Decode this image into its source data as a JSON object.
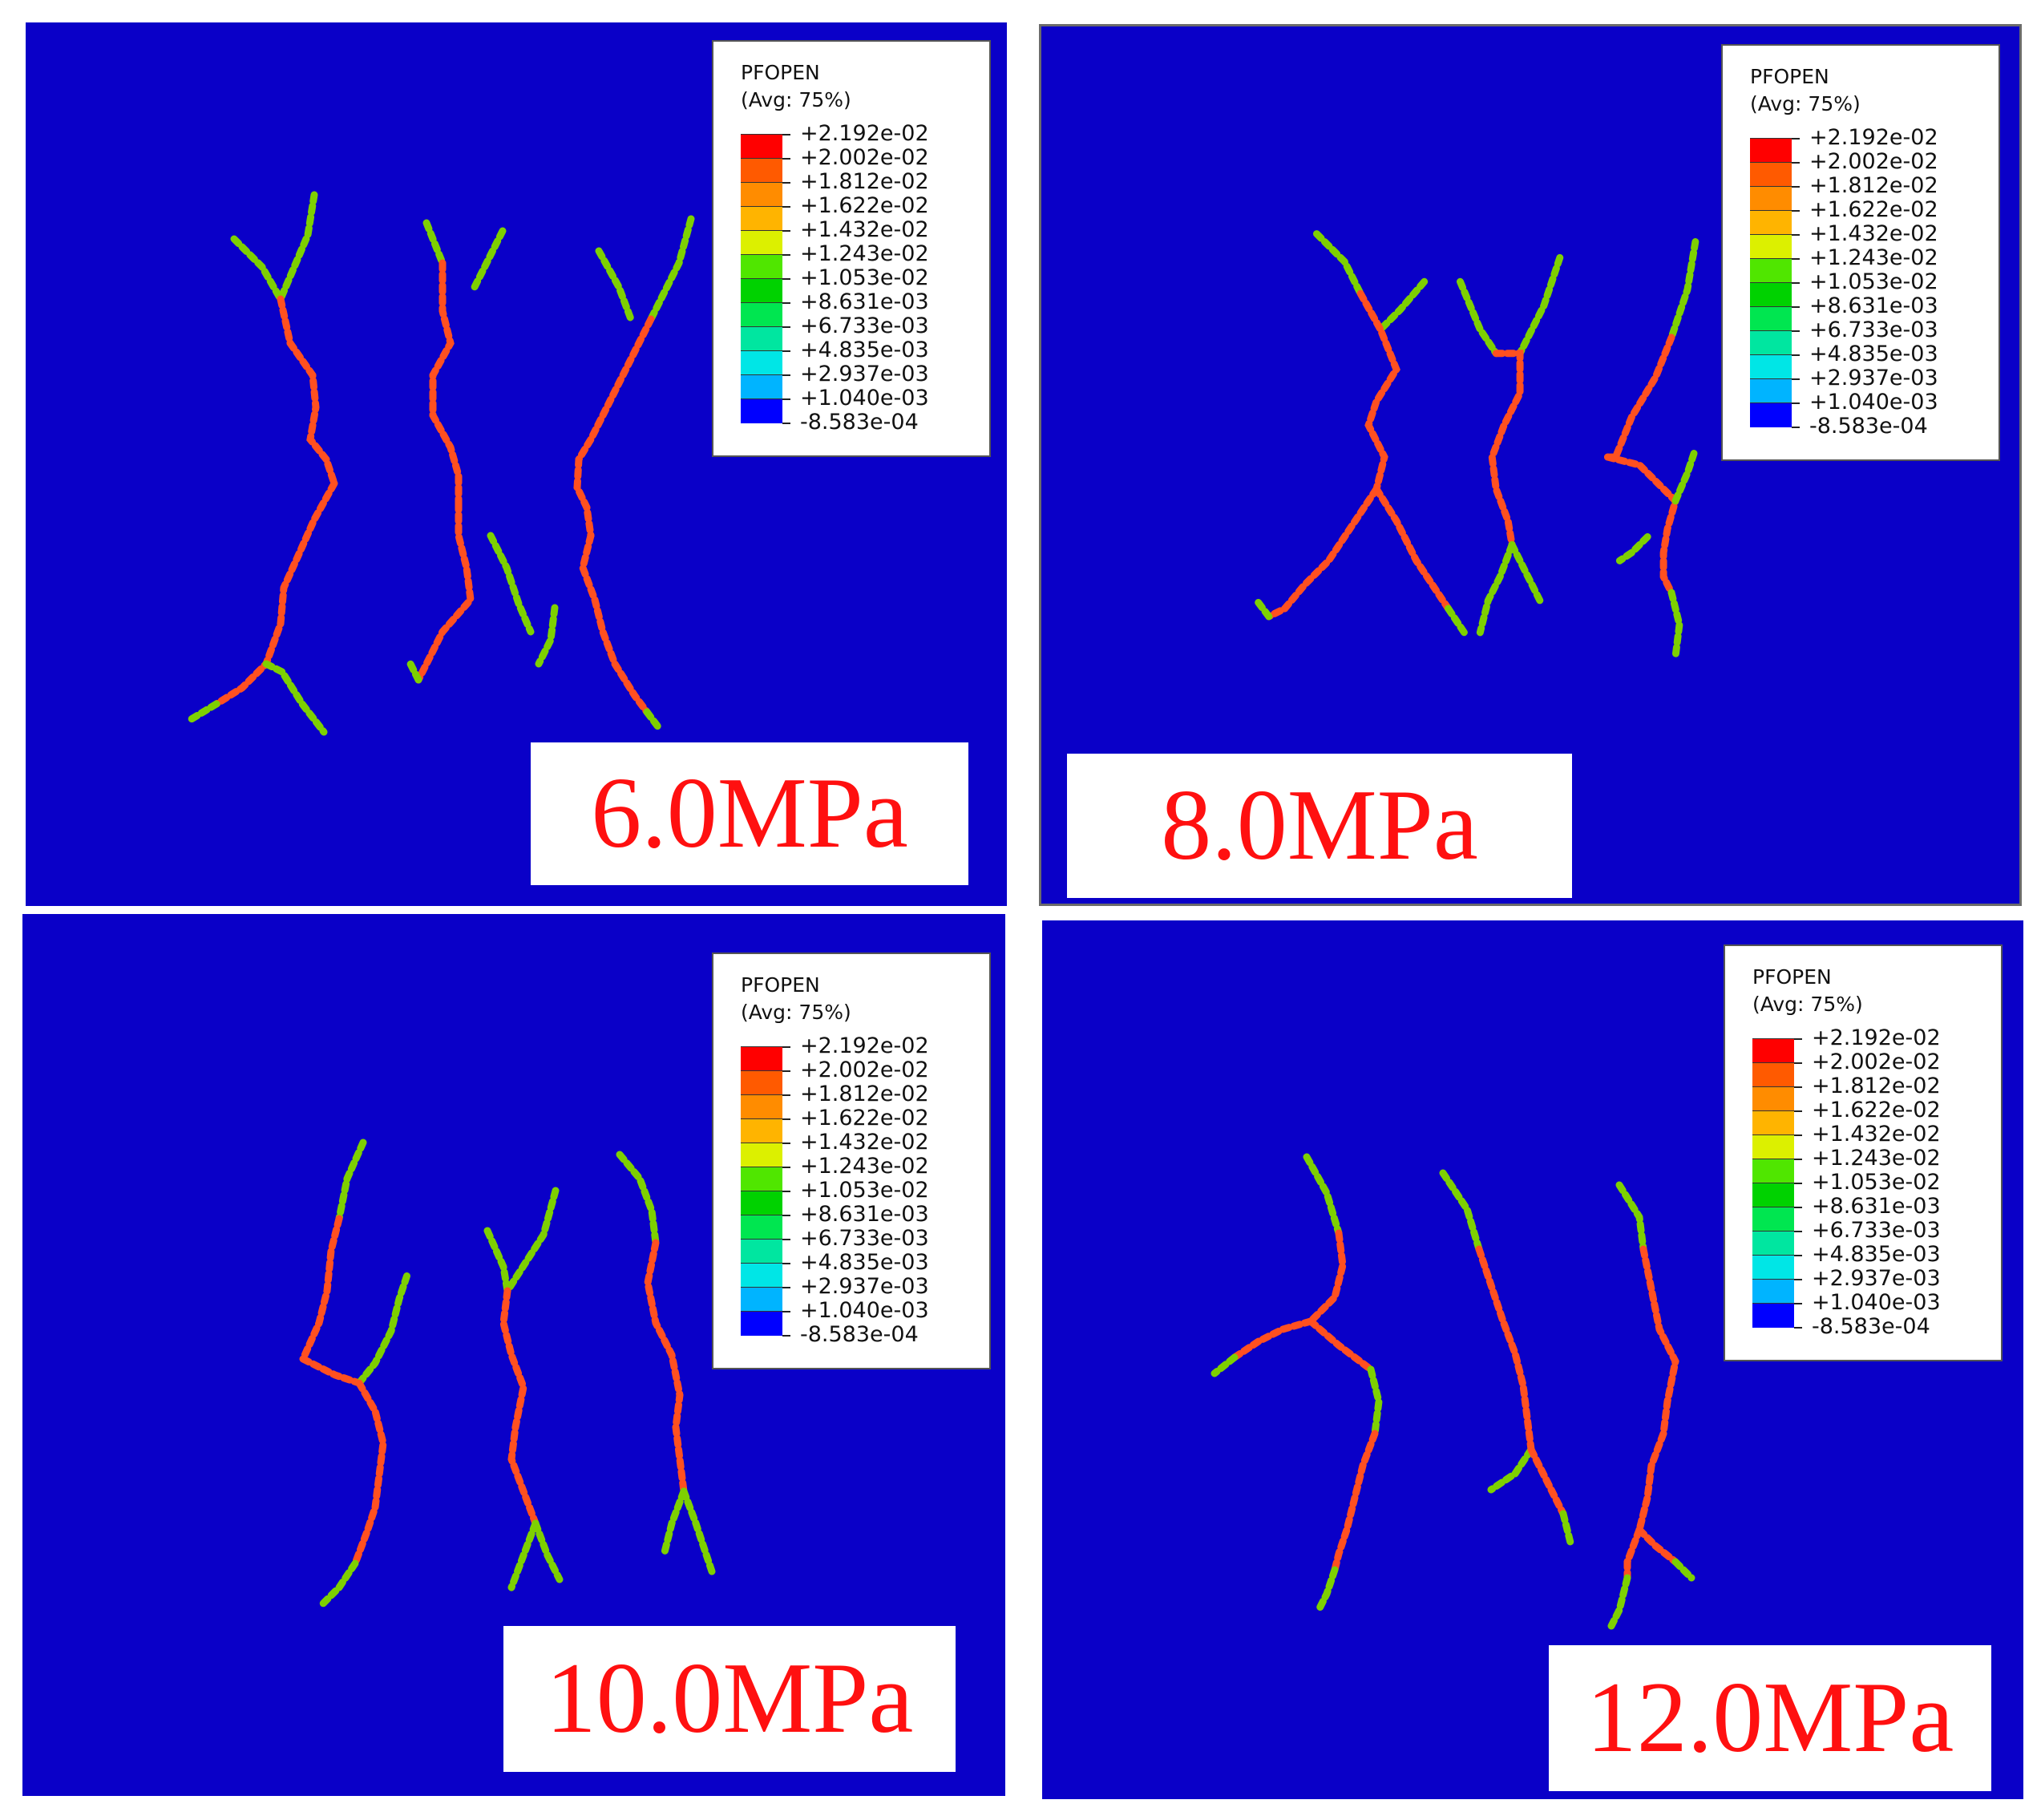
{
  "legend": {
    "title": "PFOPEN",
    "subtitle": "(Avg: 75%)",
    "values": [
      "+2.192e-02",
      "+2.002e-02",
      "+1.812e-02",
      "+1.622e-02",
      "+1.432e-02",
      "+1.243e-02",
      "+1.053e-02",
      "+8.631e-03",
      "+6.733e-03",
      "+4.835e-03",
      "+2.937e-03",
      "+1.040e-03",
      "-8.583e-04"
    ],
    "colors": [
      "#ff0000",
      "#ff5a00",
      "#ff8c00",
      "#ffb400",
      "#dcf000",
      "#50e600",
      "#00d200",
      "#00e650",
      "#00e6a0",
      "#00e6e6",
      "#00b4ff",
      "#0064ff",
      "#0000ff"
    ]
  },
  "panel_background": "#0a00c8",
  "panels": [
    {
      "label": "6.0MPa"
    },
    {
      "label": "8.0MPa"
    },
    {
      "label": "10.0MPa"
    },
    {
      "label": "12.0MPa"
    }
  ]
}
